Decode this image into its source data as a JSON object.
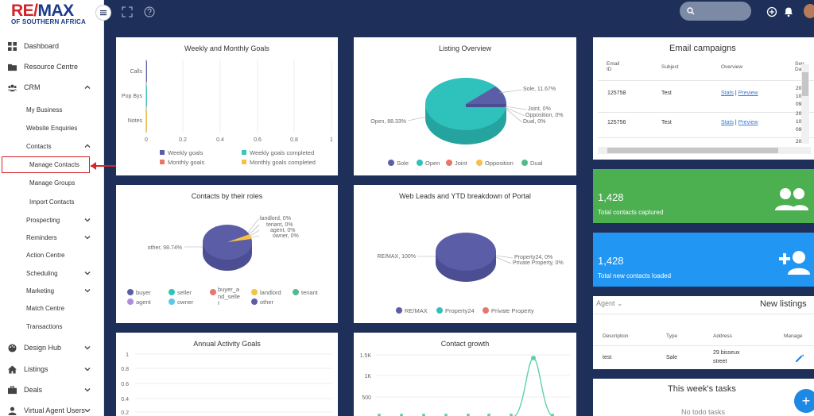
{
  "logo": {
    "brand_part1": "RE/",
    "brand_part2": "MAX",
    "subtitle": "OF SOUTHERN AFRICA"
  },
  "sidebar": {
    "items": [
      {
        "label": "Dashboard",
        "icon": "dashboard-icon"
      },
      {
        "label": "Resource Centre",
        "icon": "folder-icon"
      },
      {
        "label": "CRM",
        "icon": "users-icon"
      },
      {
        "label": "My Business"
      },
      {
        "label": "Website Enquiries"
      },
      {
        "label": "Contacts"
      },
      {
        "label": "Manage Contacts"
      },
      {
        "label": "Manage Groups"
      },
      {
        "label": "Import Contacts"
      },
      {
        "label": "Prospecting"
      },
      {
        "label": "Reminders"
      },
      {
        "label": "Action Centre"
      },
      {
        "label": "Scheduling"
      },
      {
        "label": "Marketing"
      },
      {
        "label": "Match Centre"
      },
      {
        "label": "Transactions"
      },
      {
        "label": "Design Hub",
        "icon": "palette-icon"
      },
      {
        "label": "Listings",
        "icon": "home-icon"
      },
      {
        "label": "Deals",
        "icon": "briefcase-icon"
      },
      {
        "label": "Virtual Agent Users",
        "icon": "user-icon"
      }
    ]
  },
  "goals": {
    "title": "Weekly and Monthly Goals",
    "rows": [
      "Calls",
      "Pop Bys",
      "Notes"
    ],
    "ticks": [
      "0",
      "0.2",
      "0.4",
      "0.6",
      "0.8",
      "1"
    ],
    "legend": [
      "Weekly goals",
      "Weekly goals completed",
      "Monthly goals",
      "Monthly goals completed"
    ],
    "colors": [
      "#5b5ea6",
      "#3cc6c0",
      "#e8766b",
      "#f5c243"
    ]
  },
  "listing": {
    "title": "Listing Overview",
    "labels": [
      "Sole, 11.67%",
      "Joint, 0%",
      "Opposition, 0%",
      "Dual, 0%",
      "Open, 88.33%"
    ],
    "legend": [
      "Sole",
      "Open",
      "Joint",
      "Opposition",
      "Dual"
    ],
    "colors": [
      "#5b5ea6",
      "#2fc1bb",
      "#e8766b",
      "#f5c243",
      "#54b98d"
    ]
  },
  "email": {
    "title": "Email campaigns",
    "headers": [
      "Email ID",
      "Subject",
      "Overview",
      "Sen Dat"
    ],
    "rows": [
      {
        "id": "125758",
        "subject": "Test",
        "stats": "Stats",
        "sep": "|",
        "preview": "Preview",
        "date": "20 10 09"
      },
      {
        "id": "125756",
        "subject": "Test",
        "stats": "Stats",
        "sep": "|",
        "preview": "Preview",
        "date": "20 10 09"
      }
    ],
    "third_date": "20"
  },
  "roles": {
    "title": "Contacts by their roles",
    "labels": [
      "landlord, 0%",
      "tenant, 0%",
      "agent, 0%",
      "owner, 0%",
      "other, 98.74%"
    ],
    "legend": [
      "buyer",
      "seller",
      "buyer_a nd_selle r",
      "landlord",
      "tenant",
      "agent",
      "owner",
      "other"
    ],
    "colors": [
      "#5b5ea6",
      "#2fc1bb",
      "#e8766b",
      "#f5c243",
      "#54b98d",
      "#b18be0",
      "#5ec6e8",
      "#5b5ea6"
    ]
  },
  "webleads": {
    "title": "Web Leads and YTD breakdown of Portal",
    "labels": [
      "RE/MAX, 100%",
      "Property24, 0%",
      "Private Property, 0%"
    ],
    "legend": [
      "RE/MAX",
      "Property24",
      "Private Property"
    ],
    "colors": [
      "#5b5ea6",
      "#2fc1bb",
      "#e8766b"
    ]
  },
  "stats": [
    {
      "value": "1,428",
      "caption": "Total contacts captured",
      "color": "#4caf50"
    },
    {
      "value": "1,428",
      "caption": "Total new contacts loaded",
      "color": "#2196f3"
    }
  ],
  "listings": {
    "filter": "Agent",
    "title": "New listings",
    "headers": [
      "Description",
      "Type",
      "Address",
      "Manage"
    ],
    "row": {
      "description": "test",
      "type": "Sale",
      "address_line1": "29 bisseux",
      "address_line2": "street"
    }
  },
  "annual": {
    "title": "Annual Activity Goals",
    "ticks": [
      "1",
      "0.8",
      "0.6",
      "0.4",
      "0.2"
    ]
  },
  "growth": {
    "title": "Contact growth",
    "ticks": [
      "1.5K",
      "1K",
      "500"
    ]
  },
  "tasks": {
    "title": "This week's tasks",
    "empty": "No todo tasks"
  },
  "chart_data": [
    {
      "type": "bar",
      "title": "Weekly and Monthly Goals",
      "categories": [
        "Calls",
        "Pop Bys",
        "Notes"
      ],
      "series": [
        {
          "name": "Weekly goals",
          "values": [
            0,
            0,
            0
          ]
        },
        {
          "name": "Weekly goals completed",
          "values": [
            0,
            0,
            0
          ]
        },
        {
          "name": "Monthly goals",
          "values": [
            0,
            0,
            0
          ]
        },
        {
          "name": "Monthly goals completed",
          "values": [
            0,
            0,
            0
          ]
        }
      ],
      "xlim": [
        0,
        1
      ]
    },
    {
      "type": "pie",
      "title": "Listing Overview",
      "categories": [
        "Sole",
        "Open",
        "Joint",
        "Opposition",
        "Dual"
      ],
      "values": [
        11.67,
        88.33,
        0,
        0,
        0
      ]
    },
    {
      "type": "pie",
      "title": "Contacts by their roles",
      "categories": [
        "buyer",
        "seller",
        "buyer_and_seller",
        "landlord",
        "tenant",
        "agent",
        "owner",
        "other"
      ],
      "values": [
        0,
        0,
        0,
        0,
        0,
        0,
        0,
        98.74
      ]
    },
    {
      "type": "pie",
      "title": "Web Leads and YTD breakdown of Portal",
      "categories": [
        "RE/MAX",
        "Property24",
        "Private Property"
      ],
      "values": [
        100,
        0,
        0
      ]
    },
    {
      "type": "line",
      "title": "Contact growth",
      "ylim": [
        0,
        1500
      ],
      "values": [
        0,
        0,
        0,
        0,
        0,
        0,
        0,
        0,
        0,
        0,
        0,
        1428,
        0
      ]
    }
  ]
}
